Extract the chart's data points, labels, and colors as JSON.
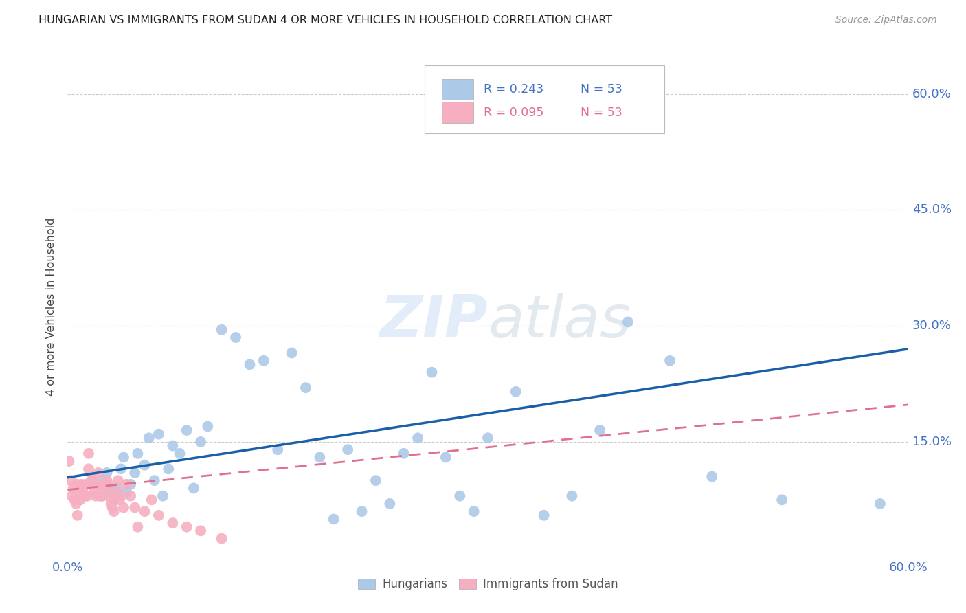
{
  "title": "HUNGARIAN VS IMMIGRANTS FROM SUDAN 4 OR MORE VEHICLES IN HOUSEHOLD CORRELATION CHART",
  "source": "Source: ZipAtlas.com",
  "ylabel": "4 or more Vehicles in Household",
  "xlim": [
    0.0,
    0.6
  ],
  "ylim": [
    0.0,
    0.65
  ],
  "legend_labels": [
    "Hungarians",
    "Immigrants from Sudan"
  ],
  "blue_R": "R = 0.243",
  "blue_N": "N = 53",
  "pink_R": "R = 0.095",
  "pink_N": "N = 53",
  "blue_color": "#adc9e8",
  "pink_color": "#f5afc0",
  "blue_line_color": "#1a5fa8",
  "pink_line_color": "#e07090",
  "grid_color": "#cccccc",
  "axis_color": "#4472c4",
  "watermark_color": "#d0e4f5",
  "blue_points_x": [
    0.02,
    0.025,
    0.028,
    0.03,
    0.033,
    0.035,
    0.038,
    0.04,
    0.042,
    0.045,
    0.048,
    0.05,
    0.055,
    0.058,
    0.062,
    0.065,
    0.068,
    0.072,
    0.075,
    0.08,
    0.085,
    0.09,
    0.095,
    0.1,
    0.11,
    0.12,
    0.13,
    0.14,
    0.15,
    0.16,
    0.17,
    0.18,
    0.19,
    0.2,
    0.21,
    0.22,
    0.23,
    0.24,
    0.25,
    0.26,
    0.27,
    0.28,
    0.29,
    0.3,
    0.32,
    0.34,
    0.36,
    0.38,
    0.4,
    0.43,
    0.46,
    0.51,
    0.58
  ],
  "blue_points_y": [
    0.095,
    0.1,
    0.11,
    0.085,
    0.075,
    0.09,
    0.115,
    0.13,
    0.085,
    0.095,
    0.11,
    0.135,
    0.12,
    0.155,
    0.1,
    0.16,
    0.08,
    0.115,
    0.145,
    0.135,
    0.165,
    0.09,
    0.15,
    0.17,
    0.295,
    0.285,
    0.25,
    0.255,
    0.14,
    0.265,
    0.22,
    0.13,
    0.05,
    0.14,
    0.06,
    0.1,
    0.07,
    0.135,
    0.155,
    0.24,
    0.13,
    0.08,
    0.06,
    0.155,
    0.215,
    0.055,
    0.08,
    0.165,
    0.305,
    0.255,
    0.105,
    0.075,
    0.07
  ],
  "pink_points_x": [
    0.001,
    0.002,
    0.003,
    0.004,
    0.005,
    0.006,
    0.007,
    0.007,
    0.008,
    0.009,
    0.01,
    0.011,
    0.012,
    0.013,
    0.014,
    0.015,
    0.015,
    0.016,
    0.017,
    0.018,
    0.019,
    0.02,
    0.021,
    0.022,
    0.022,
    0.023,
    0.024,
    0.025,
    0.026,
    0.027,
    0.028,
    0.029,
    0.03,
    0.031,
    0.032,
    0.033,
    0.034,
    0.035,
    0.036,
    0.037,
    0.038,
    0.04,
    0.042,
    0.045,
    0.048,
    0.05,
    0.055,
    0.06,
    0.065,
    0.075,
    0.085,
    0.095,
    0.11
  ],
  "pink_points_y": [
    0.125,
    0.1,
    0.08,
    0.09,
    0.075,
    0.07,
    0.095,
    0.055,
    0.085,
    0.075,
    0.095,
    0.085,
    0.08,
    0.095,
    0.08,
    0.135,
    0.115,
    0.095,
    0.1,
    0.1,
    0.085,
    0.08,
    0.095,
    0.11,
    0.095,
    0.08,
    0.08,
    0.08,
    0.09,
    0.085,
    0.1,
    0.095,
    0.08,
    0.07,
    0.065,
    0.06,
    0.08,
    0.085,
    0.1,
    0.075,
    0.08,
    0.065,
    0.095,
    0.08,
    0.065,
    0.04,
    0.06,
    0.075,
    0.055,
    0.045,
    0.04,
    0.035,
    0.025
  ],
  "blue_line_x": [
    0.0,
    0.6
  ],
  "blue_line_y": [
    0.104,
    0.27
  ],
  "pink_line_x": [
    0.0,
    0.6
  ],
  "pink_line_y": [
    0.088,
    0.198
  ]
}
